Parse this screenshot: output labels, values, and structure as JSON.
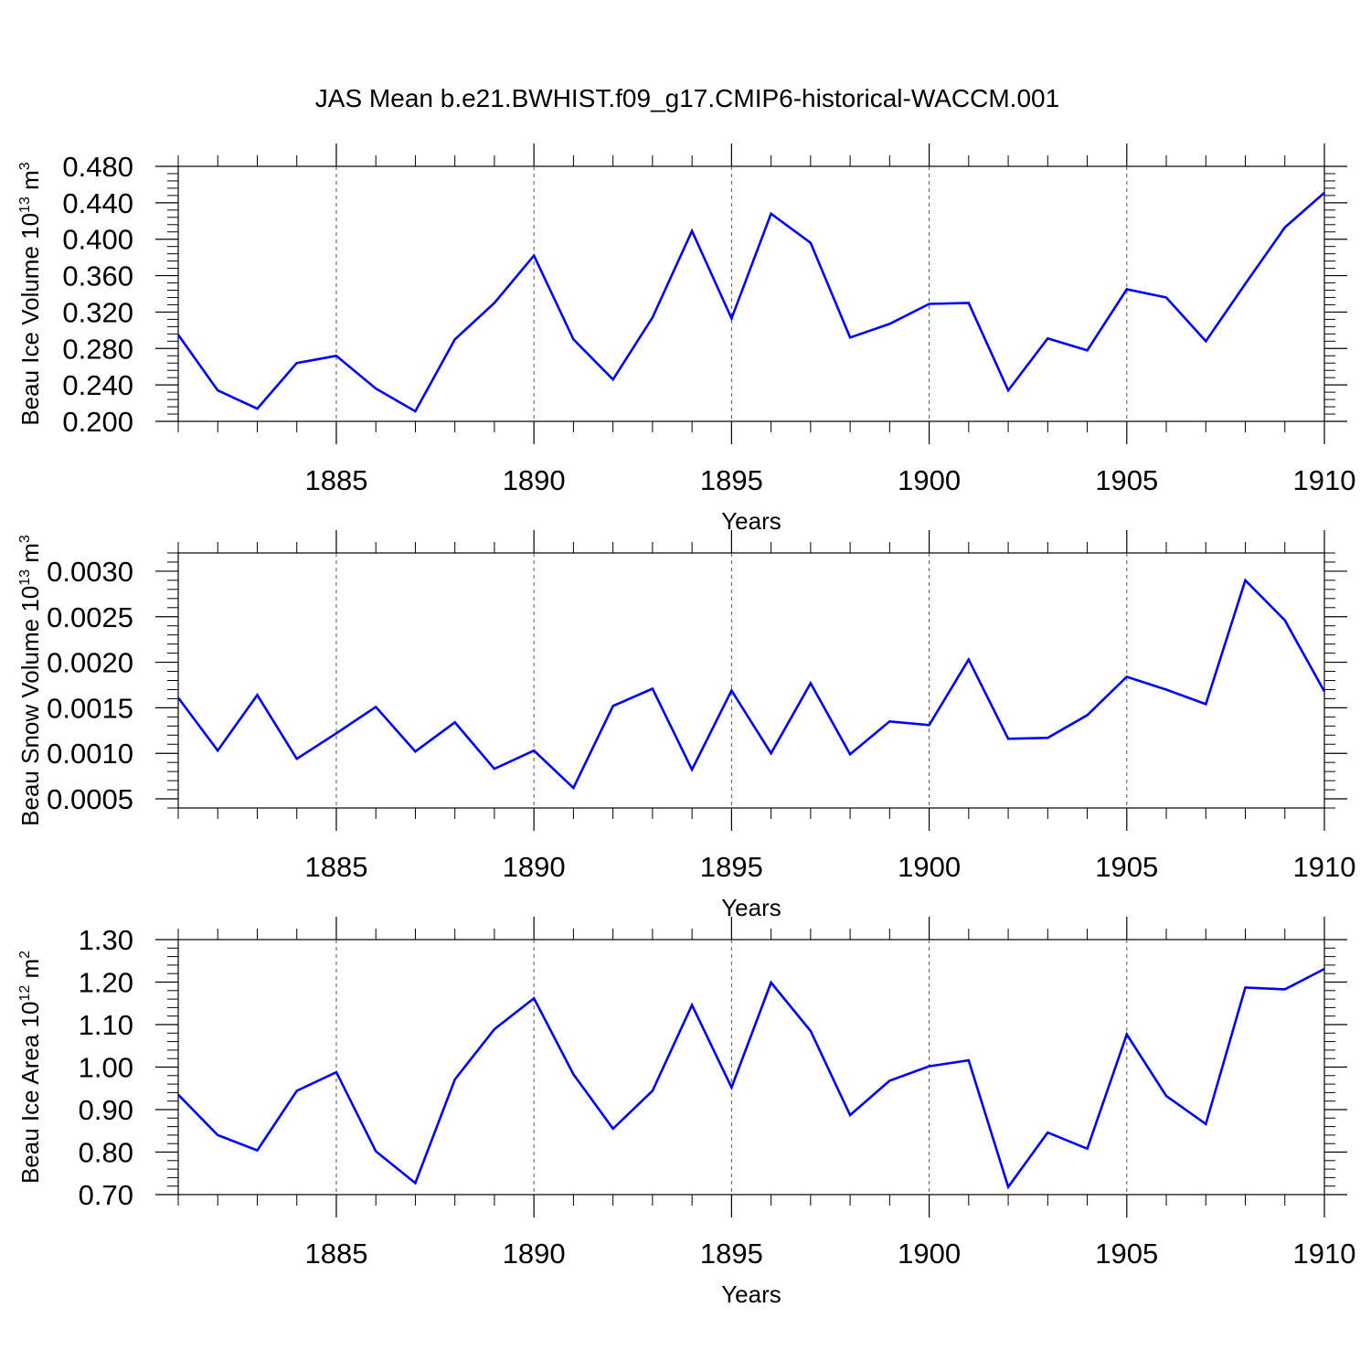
{
  "title": "JAS Mean b.e21.BWHIST.f09_g17.CMIP6-historical-WACCM.001",
  "chart_data": [
    {
      "type": "line",
      "ylabel": "Beau Ice Volume 10",
      "ylabel_exp": "13",
      "ylabel_unit": "m",
      "ylabel_unit_exp": "3",
      "xlabel": "Years",
      "xlim": [
        1881,
        1910
      ],
      "ylim": [
        0.2,
        0.48
      ],
      "y_ticks": [
        "0.200",
        "0.240",
        "0.280",
        "0.320",
        "0.360",
        "0.400",
        "0.440",
        "0.480"
      ],
      "x_ticks": [
        "1885",
        "1890",
        "1895",
        "1900",
        "1905",
        "1910"
      ],
      "color": "#0000ff",
      "x": [
        1881,
        1882,
        1883,
        1884,
        1885,
        1886,
        1887,
        1888,
        1889,
        1890,
        1891,
        1892,
        1893,
        1894,
        1895,
        1896,
        1897,
        1898,
        1899,
        1900,
        1901,
        1902,
        1903,
        1904,
        1905,
        1906,
        1907,
        1908,
        1909,
        1910
      ],
      "values": [
        0.295,
        0.234,
        0.214,
        0.264,
        0.272,
        0.236,
        0.211,
        0.29,
        0.33,
        0.382,
        0.29,
        0.246,
        0.314,
        0.409,
        0.313,
        0.428,
        0.396,
        0.292,
        0.307,
        0.329,
        0.33,
        0.234,
        0.291,
        0.278,
        0.345,
        0.336,
        0.288,
        0.351,
        0.413,
        0.451
      ]
    },
    {
      "type": "line",
      "ylabel": "Beau Snow Volume 10",
      "ylabel_exp": "13",
      "ylabel_unit": "m",
      "ylabel_unit_exp": "3",
      "xlabel": "Years",
      "xlim": [
        1881,
        1910
      ],
      "ylim": [
        0.0004,
        0.0032
      ],
      "y_ticks": [
        "0.0005",
        "0.0010",
        "0.0015",
        "0.0020",
        "0.0025",
        "0.0030"
      ],
      "x_ticks": [
        "1885",
        "1890",
        "1895",
        "1900",
        "1905",
        "1910"
      ],
      "color": "#0000ff",
      "x": [
        1881,
        1882,
        1883,
        1884,
        1885,
        1886,
        1887,
        1888,
        1889,
        1890,
        1891,
        1892,
        1893,
        1894,
        1895,
        1896,
        1897,
        1898,
        1899,
        1900,
        1901,
        1902,
        1903,
        1904,
        1905,
        1906,
        1907,
        1908,
        1909,
        1910
      ],
      "values": [
        0.00161,
        0.00103,
        0.00164,
        0.00094,
        0.00122,
        0.00151,
        0.00102,
        0.00134,
        0.00083,
        0.00103,
        0.00062,
        0.00152,
        0.00171,
        0.00082,
        0.00169,
        0.001,
        0.00177,
        0.00099,
        0.00135,
        0.00131,
        0.00203,
        0.00116,
        0.00117,
        0.00142,
        0.00184,
        0.0017,
        0.00154,
        0.0029,
        0.00246,
        0.00168
      ]
    },
    {
      "type": "line",
      "ylabel": "Beau Ice Area 10",
      "ylabel_exp": "12",
      "ylabel_unit": "m",
      "ylabel_unit_exp": "2",
      "xlabel": "Years",
      "xlim": [
        1881,
        1910
      ],
      "ylim": [
        0.7,
        1.3
      ],
      "y_ticks": [
        "0.70",
        "0.80",
        "0.90",
        "1.00",
        "1.10",
        "1.20",
        "1.30"
      ],
      "x_ticks": [
        "1885",
        "1890",
        "1895",
        "1900",
        "1905",
        "1910"
      ],
      "color": "#0000ff",
      "x": [
        1881,
        1882,
        1883,
        1884,
        1885,
        1886,
        1887,
        1888,
        1889,
        1890,
        1891,
        1892,
        1893,
        1894,
        1895,
        1896,
        1897,
        1898,
        1899,
        1900,
        1901,
        1902,
        1903,
        1904,
        1905,
        1906,
        1907,
        1908,
        1909,
        1910
      ],
      "values": [
        0.935,
        0.84,
        0.804,
        0.944,
        0.988,
        0.802,
        0.727,
        0.971,
        1.089,
        1.162,
        0.983,
        0.855,
        0.944,
        1.146,
        0.952,
        1.199,
        1.085,
        0.887,
        0.968,
        1.002,
        1.016,
        0.718,
        0.846,
        0.808,
        1.077,
        0.932,
        0.866,
        1.187,
        1.183,
        1.231
      ]
    }
  ]
}
